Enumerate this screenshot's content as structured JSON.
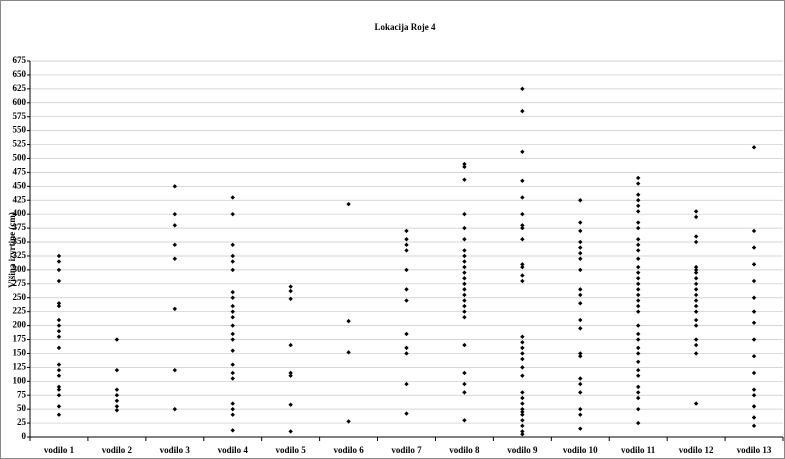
{
  "chart_data": {
    "type": "scatter",
    "title": "Lokacija Roje 4",
    "y_label": "Višina izvrtine (cm)",
    "categories": [
      "vodilo 1",
      "vodilo 2",
      "vodilo 3",
      "vodilo 4",
      "vodilo 5",
      "vodilo 6",
      "vodilo 7",
      "vodilo 8",
      "vodilo 9",
      "vodilo 10",
      "vodilo 11",
      "vodilo 12",
      "vodilo 13"
    ],
    "values": [
      [
        325,
        315,
        300,
        280,
        240,
        235,
        210,
        200,
        190,
        180,
        160,
        130,
        120,
        110,
        90,
        85,
        75,
        55,
        40
      ],
      [
        175,
        120,
        85,
        75,
        65,
        55,
        48
      ],
      [
        450,
        400,
        380,
        345,
        320,
        230,
        120,
        50
      ],
      [
        430,
        400,
        345,
        325,
        315,
        300,
        260,
        250,
        235,
        225,
        215,
        200,
        185,
        175,
        155,
        130,
        115,
        105,
        60,
        50,
        40,
        12
      ],
      [
        270,
        262,
        248,
        165,
        115,
        110,
        58,
        10
      ],
      [
        418,
        208,
        152,
        28
      ],
      [
        370,
        355,
        345,
        335,
        300,
        265,
        245,
        185,
        160,
        150,
        95,
        42
      ],
      [
        490,
        485,
        462,
        400,
        375,
        355,
        335,
        325,
        315,
        305,
        295,
        285,
        275,
        265,
        255,
        245,
        235,
        225,
        215,
        165,
        115,
        95,
        80,
        30
      ],
      [
        625,
        585,
        512,
        460,
        430,
        400,
        380,
        375,
        355,
        310,
        305,
        290,
        280,
        180,
        170,
        160,
        150,
        140,
        125,
        110,
        80,
        70,
        60,
        50,
        45,
        40,
        30,
        20,
        10,
        5
      ],
      [
        425,
        385,
        370,
        350,
        340,
        330,
        320,
        300,
        265,
        255,
        240,
        210,
        195,
        150,
        145,
        105,
        95,
        80,
        50,
        40,
        15
      ],
      [
        465,
        455,
        435,
        425,
        415,
        405,
        385,
        375,
        355,
        345,
        335,
        320,
        305,
        295,
        285,
        275,
        265,
        255,
        245,
        235,
        225,
        200,
        185,
        175,
        160,
        150,
        135,
        120,
        110,
        90,
        80,
        70,
        50,
        25
      ],
      [
        405,
        395,
        360,
        350,
        305,
        300,
        295,
        285,
        275,
        265,
        255,
        245,
        235,
        225,
        210,
        200,
        175,
        165,
        150,
        60
      ],
      [
        520,
        370,
        340,
        310,
        280,
        250,
        225,
        205,
        175,
        145,
        115,
        85,
        75,
        55,
        35,
        20
      ]
    ],
    "color": "#000000",
    "ylim": [
      0,
      675
    ],
    "yticks": [
      0,
      25,
      50,
      75,
      100,
      125,
      150,
      175,
      200,
      225,
      250,
      275,
      300,
      325,
      350,
      375,
      400,
      425,
      450,
      475,
      500,
      525,
      550,
      575,
      600,
      625,
      650,
      675
    ],
    "grid": true
  }
}
